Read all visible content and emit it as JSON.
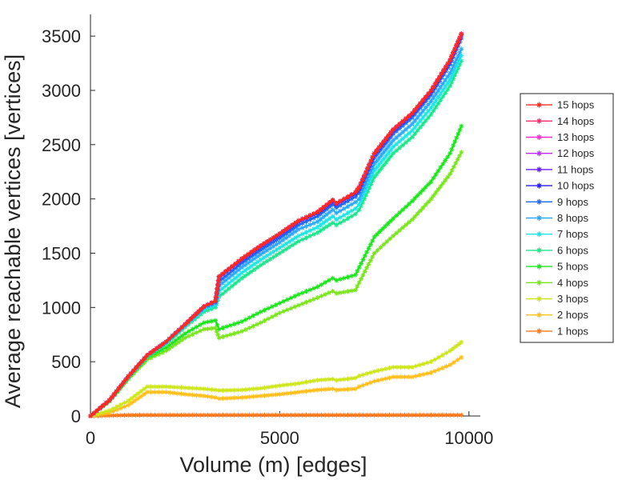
{
  "chart_data": {
    "type": "line",
    "xlabel": "Volume (m) [edges]",
    "ylabel": "Average reachable vertices [vertices]",
    "xlim": [
      0,
      10300
    ],
    "ylim": [
      0,
      3700
    ],
    "xticks": [
      0,
      5000,
      10000
    ],
    "yticks": [
      0,
      500,
      1000,
      1500,
      2000,
      2500,
      3000,
      3500
    ],
    "x": [
      0,
      500,
      1000,
      1500,
      2000,
      2500,
      3000,
      3300,
      3400,
      4000,
      4500,
      5000,
      5500,
      6000,
      6400,
      6500,
      7000,
      7100,
      7500,
      8000,
      8500,
      9000,
      9500,
      9800
    ],
    "legend_position": "right",
    "series": [
      {
        "name": "15 hops",
        "color": "#ff2a1a",
        "values": [
          0,
          145,
          365,
          560,
          685,
          845,
          1010,
          1060,
          1285,
          1450,
          1570,
          1680,
          1800,
          1880,
          1990,
          1960,
          2060,
          2110,
          2420,
          2640,
          2790,
          3000,
          3280,
          3520
        ]
      },
      {
        "name": "14 hops",
        "color": "#ff2a6a",
        "values": [
          0,
          145,
          365,
          560,
          685,
          845,
          1010,
          1060,
          1285,
          1450,
          1570,
          1680,
          1800,
          1880,
          1990,
          1960,
          2060,
          2110,
          2420,
          2640,
          2790,
          3000,
          3280,
          3520
        ]
      },
      {
        "name": "13 hops",
        "color": "#ff2ad4",
        "values": [
          0,
          145,
          365,
          560,
          685,
          845,
          1010,
          1060,
          1285,
          1450,
          1570,
          1680,
          1800,
          1880,
          1990,
          1960,
          2060,
          2110,
          2420,
          2640,
          2790,
          3000,
          3280,
          3520
        ]
      },
      {
        "name": "12 hops",
        "color": "#c42aff",
        "values": [
          0,
          145,
          365,
          560,
          685,
          845,
          1010,
          1060,
          1285,
          1450,
          1570,
          1680,
          1800,
          1880,
          1990,
          1960,
          2060,
          2110,
          2420,
          2640,
          2790,
          3000,
          3280,
          3520
        ]
      },
      {
        "name": "11 hops",
        "color": "#6a1aff",
        "values": [
          0,
          145,
          365,
          560,
          685,
          845,
          1010,
          1060,
          1285,
          1450,
          1570,
          1680,
          1800,
          1880,
          1990,
          1960,
          2060,
          2110,
          2420,
          2640,
          2790,
          3000,
          3280,
          3520
        ]
      },
      {
        "name": "10 hops",
        "color": "#2a1aff",
        "values": [
          0,
          145,
          365,
          560,
          685,
          845,
          1010,
          1060,
          1280,
          1440,
          1560,
          1670,
          1790,
          1870,
          1980,
          1950,
          2050,
          2100,
          2410,
          2630,
          2780,
          2990,
          3270,
          3510
        ]
      },
      {
        "name": "9 hops",
        "color": "#1a6aff",
        "values": [
          0,
          145,
          365,
          560,
          685,
          845,
          1005,
          1050,
          1240,
          1410,
          1530,
          1640,
          1760,
          1840,
          1950,
          1920,
          2020,
          2060,
          2380,
          2600,
          2750,
          2960,
          3240,
          3480
        ]
      },
      {
        "name": "8 hops",
        "color": "#2aaaff",
        "values": [
          0,
          145,
          365,
          560,
          680,
          840,
          1000,
          1040,
          1200,
          1370,
          1490,
          1600,
          1720,
          1790,
          1900,
          1870,
          1970,
          2000,
          2320,
          2540,
          2690,
          2900,
          3160,
          3380
        ]
      },
      {
        "name": "7 hops",
        "color": "#1ae6e6",
        "values": [
          0,
          145,
          360,
          555,
          675,
          830,
          980,
          1020,
          1150,
          1320,
          1440,
          1550,
          1660,
          1740,
          1840,
          1810,
          1910,
          1950,
          2260,
          2480,
          2630,
          2840,
          3100,
          3320
        ]
      },
      {
        "name": "6 hops",
        "color": "#1ae68c",
        "values": [
          0,
          140,
          355,
          550,
          665,
          820,
          960,
          1000,
          1100,
          1270,
          1390,
          1500,
          1610,
          1690,
          1780,
          1760,
          1860,
          1900,
          2200,
          2420,
          2570,
          2780,
          3040,
          3270
        ]
      },
      {
        "name": "5 hops",
        "color": "#1ae61a",
        "values": [
          0,
          140,
          350,
          540,
          630,
          760,
          860,
          880,
          800,
          870,
          960,
          1040,
          1120,
          1190,
          1270,
          1250,
          1300,
          1370,
          1650,
          1820,
          1980,
          2160,
          2420,
          2670
        ]
      },
      {
        "name": "4 hops",
        "color": "#78e61a",
        "values": [
          0,
          135,
          340,
          520,
          600,
          720,
          800,
          810,
          720,
          780,
          860,
          950,
          1020,
          1090,
          1150,
          1130,
          1160,
          1230,
          1500,
          1660,
          1810,
          2000,
          2230,
          2430
        ]
      },
      {
        "name": "3 hops",
        "color": "#cde61a",
        "values": [
          0,
          50,
          140,
          270,
          270,
          260,
          250,
          240,
          235,
          240,
          255,
          280,
          300,
          330,
          340,
          330,
          350,
          370,
          410,
          450,
          450,
          500,
          600,
          680
        ]
      },
      {
        "name": "2 hops",
        "color": "#ffbe1a",
        "values": [
          0,
          30,
          100,
          220,
          220,
          200,
          185,
          170,
          160,
          170,
          185,
          200,
          220,
          240,
          250,
          240,
          250,
          270,
          320,
          360,
          360,
          400,
          470,
          540
        ]
      },
      {
        "name": "1 hops",
        "color": "#ff781a",
        "values": [
          0,
          5,
          8,
          9,
          9,
          9,
          9,
          9,
          9,
          9,
          9,
          9,
          9,
          9,
          9,
          9,
          9,
          9,
          9,
          9,
          9,
          9,
          9,
          9
        ]
      }
    ]
  }
}
